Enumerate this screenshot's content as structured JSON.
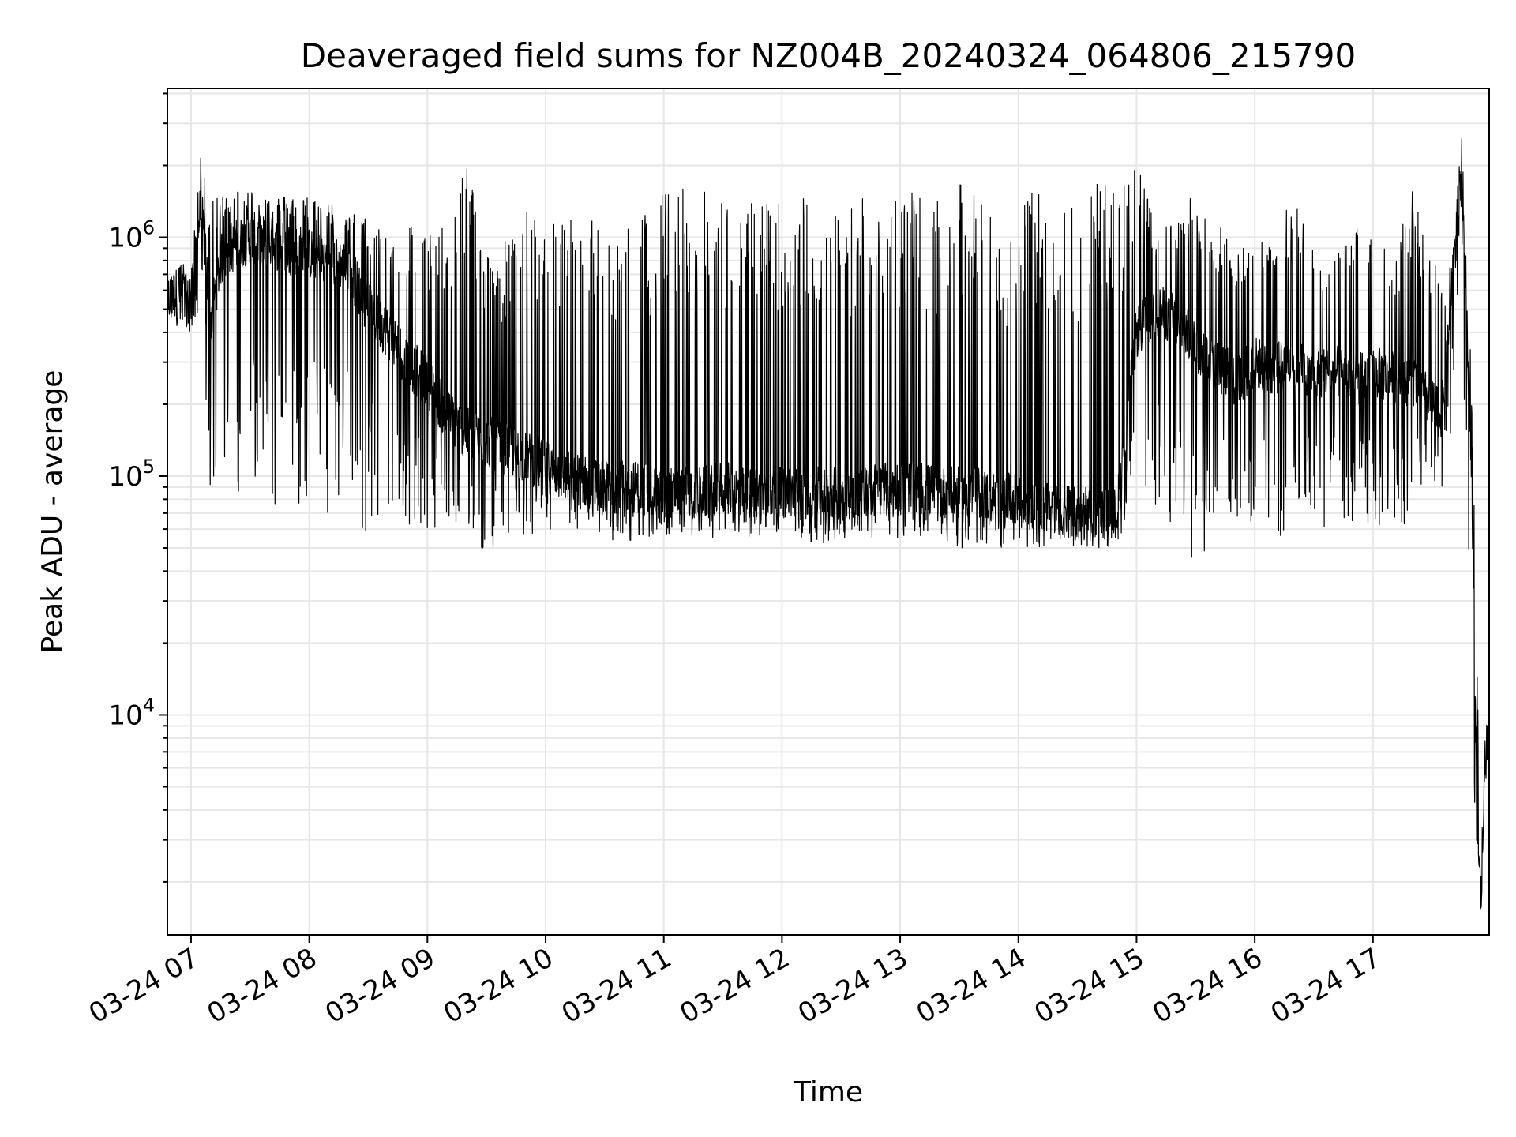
{
  "chart_data": {
    "type": "line",
    "title": "Deaveraged field sums for NZ004B_20240324_064806_215790",
    "xlabel": "Time",
    "ylabel": "Peak ADU - average",
    "x_ticks": [
      "03-24 07",
      "03-24 08",
      "03-24 09",
      "03-24 10",
      "03-24 11",
      "03-24 12",
      "03-24 13",
      "03-24 14",
      "03-24 15",
      "03-24 16",
      "03-24 17"
    ],
    "xlim": [
      "2024-03-24 06:48",
      "2024-03-24 17:59"
    ],
    "y_scale": "log",
    "y_ticks": [
      {
        "base": "10",
        "exp": "4",
        "value": 10000
      },
      {
        "base": "10",
        "exp": "5",
        "value": 100000
      },
      {
        "base": "10",
        "exp": "6",
        "value": 1000000
      }
    ],
    "ylim": [
      1200,
      4200000
    ],
    "grid": true,
    "line_color": "#000000",
    "grid_color": "#e6e6e6",
    "series": [
      {
        "x": [
          "06:48",
          "06:55",
          "07:00",
          "07:05",
          "07:10",
          "07:15",
          "07:20",
          "07:30",
          "07:40",
          "07:50",
          "08:00",
          "08:10",
          "08:20",
          "08:30",
          "08:40",
          "08:50",
          "09:00",
          "09:10",
          "09:20",
          "09:30",
          "09:40",
          "09:50",
          "10:00",
          "10:10",
          "10:20",
          "10:30",
          "10:40",
          "10:50",
          "11:00",
          "11:10",
          "11:20",
          "11:30",
          "11:40",
          "11:50",
          "12:00",
          "12:10",
          "12:20",
          "12:30",
          "12:40",
          "12:50",
          "13:00",
          "13:10",
          "13:20",
          "13:30",
          "13:40",
          "13:50",
          "14:00",
          "14:10",
          "14:20",
          "14:30",
          "14:40",
          "14:50",
          "15:00",
          "15:10",
          "15:20",
          "15:30",
          "15:40",
          "15:50",
          "16:00",
          "16:10",
          "16:20",
          "16:30",
          "16:40",
          "16:50",
          "17:00",
          "17:10",
          "17:20",
          "17:30",
          "17:35",
          "17:40",
          "17:45",
          "17:50",
          "17:53",
          "17:55",
          "17:57",
          "17:59"
        ],
        "y": [
          550000,
          600000,
          500000,
          1400000,
          450000,
          800000,
          900000,
          1000000,
          950000,
          900000,
          850000,
          800000,
          750000,
          500000,
          400000,
          300000,
          250000,
          180000,
          150000,
          140000,
          130000,
          120000,
          110000,
          100000,
          95000,
          90000,
          90000,
          90000,
          85000,
          85000,
          85000,
          90000,
          85000,
          85000,
          85000,
          85000,
          85000,
          85000,
          85000,
          90000,
          90000,
          90000,
          85000,
          85000,
          85000,
          80000,
          80000,
          75000,
          75000,
          70000,
          70000,
          70000,
          400000,
          500000,
          450000,
          350000,
          300000,
          250000,
          300000,
          280000,
          300000,
          260000,
          280000,
          250000,
          270000,
          260000,
          250000,
          200000,
          180000,
          600000,
          1700000,
          120000,
          3500,
          1600,
          7000,
          8000
        ],
        "upper": [
          650000,
          800000,
          700000,
          2500000,
          1400000,
          1500000,
          1600000,
          1600000,
          1500000,
          1500000,
          1500000,
          1400000,
          1300000,
          1200000,
          1100000,
          1200000,
          1100000,
          1100000,
          2400000,
          900000,
          1000000,
          1300000,
          1300000,
          1300000,
          1300000,
          1200000,
          1200000,
          1300000,
          1600000,
          1700000,
          1600000,
          1500000,
          1300000,
          1600000,
          1600000,
          1500000,
          1500000,
          1300000,
          1600000,
          1800000,
          1600000,
          1500000,
          1400000,
          1700000,
          1500000,
          1200000,
          1400000,
          1600000,
          1300000,
          1500000,
          1900000,
          1600000,
          2100000,
          1100000,
          1200000,
          1600000,
          1200000,
          1000000,
          1000000,
          1000000,
          1600000,
          900000,
          800000,
          1100000,
          1600000,
          800000,
          1700000,
          800000,
          700000,
          800000,
          2800000,
          300000,
          14000,
          2500,
          9000,
          9500
        ],
        "lower": [
          450000,
          400000,
          380000,
          500000,
          80000,
          80000,
          90000,
          80000,
          75000,
          70000,
          75000,
          70000,
          70000,
          55000,
          60000,
          60000,
          55000,
          55000,
          55000,
          45000,
          55000,
          55000,
          55000,
          55000,
          55000,
          55000,
          50000,
          55000,
          55000,
          55000,
          55000,
          55000,
          55000,
          55000,
          55000,
          55000,
          50000,
          55000,
          55000,
          55000,
          55000,
          55000,
          55000,
          50000,
          50000,
          50000,
          50000,
          50000,
          50000,
          50000,
          50000,
          50000,
          60000,
          60000,
          60000,
          38000,
          60000,
          60000,
          55000,
          55000,
          50000,
          60000,
          60000,
          60000,
          60000,
          60000,
          65000,
          80000,
          90000,
          150000,
          600000,
          8000,
          1800,
          1500,
          5000,
          6000
        ]
      }
    ]
  }
}
